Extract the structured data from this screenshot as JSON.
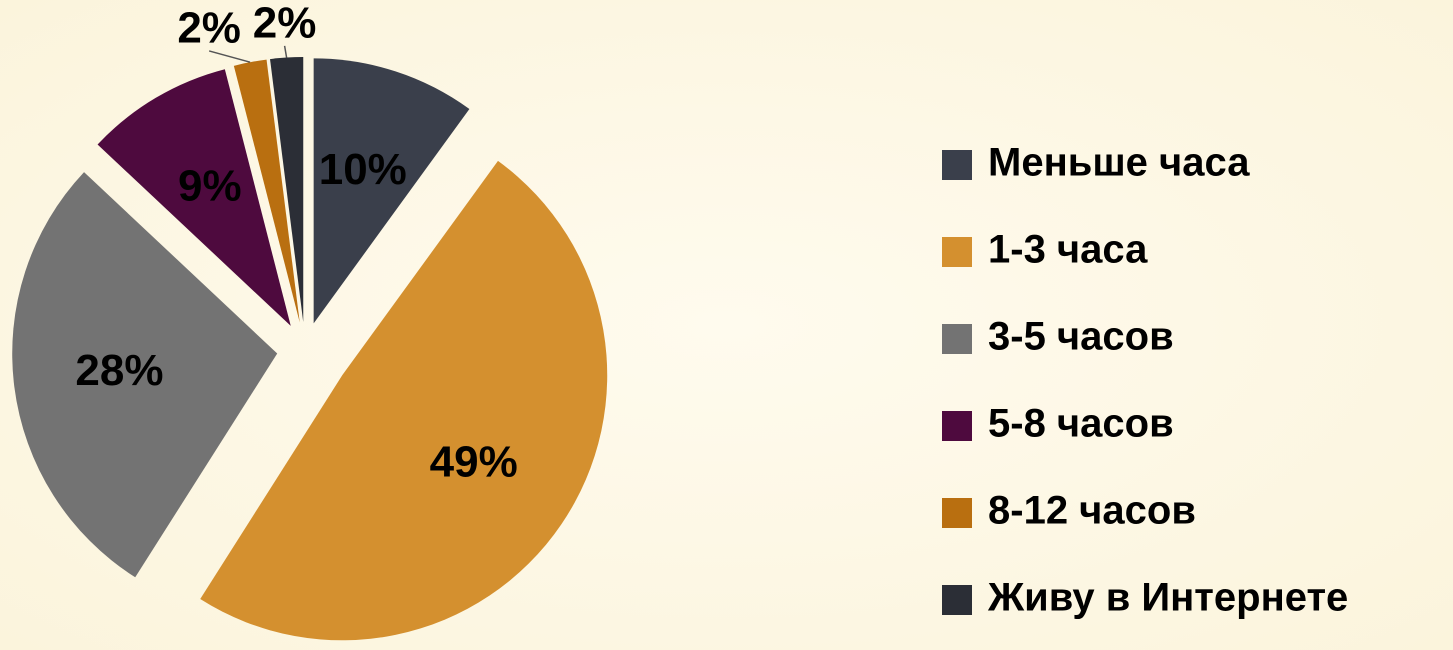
{
  "chart_data": {
    "type": "pie",
    "categories": [
      "Меньше часа",
      "1-3 часа",
      "3-5 часов",
      "5-8 часов",
      "8-12 часов",
      "Живу в Интернете"
    ],
    "values": [
      10,
      49,
      28,
      9,
      2,
      2
    ],
    "value_labels": [
      "10%",
      "49%",
      "28%",
      "9%",
      "2%",
      "2%"
    ],
    "colors": [
      "#3a3f4b",
      "#d4902f",
      "#737373",
      "#4e0a3e",
      "#b96f10",
      "#2b2e36"
    ],
    "legend": "right"
  }
}
